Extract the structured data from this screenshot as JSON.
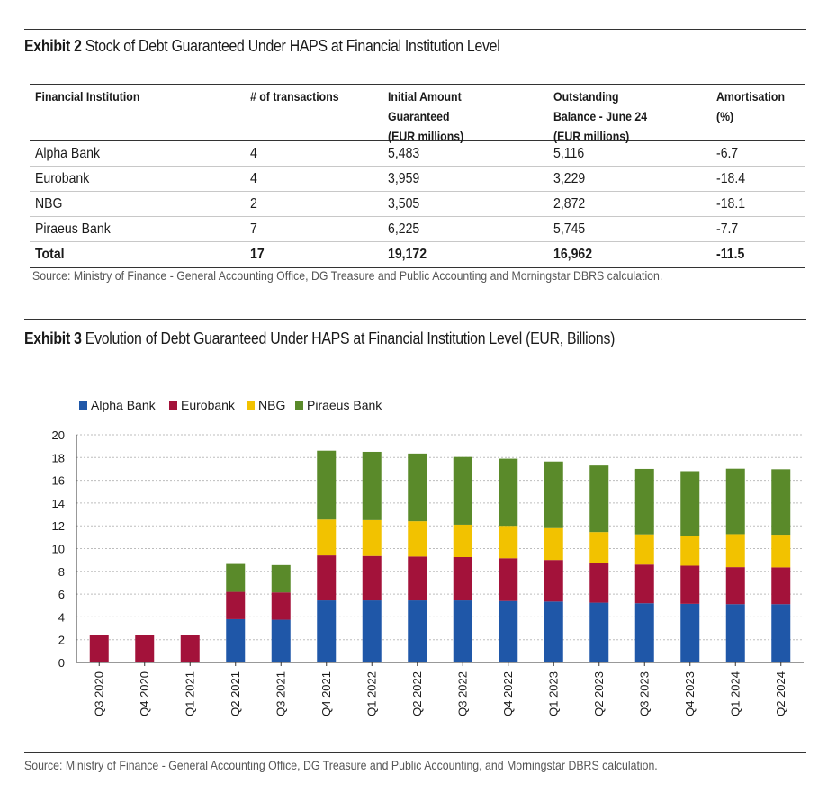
{
  "exhibit2": {
    "label": "Exhibit 2",
    "title": "Stock of Debt Guaranteed Under HAPS at Financial Institution Level",
    "headers": [
      "Financial Institution",
      "# of transactions",
      "Initial Amount\nGuaranteed\n(EUR millions)",
      "Outstanding\nBalance - June 24\n(EUR millions)",
      "Amortisation\n(%)"
    ],
    "rows": [
      [
        "Alpha Bank",
        "4",
        "5,483",
        "5,116",
        "-6.7"
      ],
      [
        "Eurobank",
        "4",
        "3,959",
        "3,229",
        "-18.4"
      ],
      [
        "NBG",
        "2",
        "3,505",
        "2,872",
        "-18.1"
      ],
      [
        "Piraeus Bank",
        "7",
        "6,225",
        "5,745",
        "-7.7"
      ]
    ],
    "total": [
      "Total",
      "17",
      "19,172",
      "16,962",
      "-11.5"
    ],
    "source": "Source: Ministry of Finance - General Accounting Office, DG Treasure and Public Accounting and Morningstar DBRS calculation."
  },
  "exhibit3": {
    "label": "Exhibit 3",
    "title": "Evolution of Debt Guaranteed Under HAPS at Financial Institution Level (EUR, Billions)",
    "source": "Source: Ministry of Finance - General Accounting Office, DG Treasure and Public Accounting, and Morningstar DBRS calculation."
  },
  "chart_data": {
    "type": "bar",
    "stacked": true,
    "title": "Evolution of Debt Guaranteed Under HAPS at Financial Institution Level (EUR, Billions)",
    "xlabel": "",
    "ylabel": "",
    "ylim": [
      0,
      20
    ],
    "yticks": [
      0,
      2,
      4,
      6,
      8,
      10,
      12,
      14,
      16,
      18,
      20
    ],
    "grid": true,
    "legend_position": "top-left",
    "categories": [
      "Q3 2020",
      "Q4 2020",
      "Q1 2021",
      "Q2 2021",
      "Q3 2021",
      "Q4 2021",
      "Q1 2022",
      "Q2 2022",
      "Q3 2022",
      "Q4 2022",
      "Q1 2023",
      "Q2 2023",
      "Q3 2023",
      "Q4 2023",
      "Q1 2024",
      "Q2 2024"
    ],
    "series": [
      {
        "name": "Alpha Bank",
        "color": "#1f57a8",
        "values": [
          0,
          0,
          0,
          3.8,
          3.75,
          5.45,
          5.45,
          5.45,
          5.45,
          5.4,
          5.35,
          5.25,
          5.2,
          5.15,
          5.12,
          5.12
        ]
      },
      {
        "name": "Eurobank",
        "color": "#a3123a",
        "values": [
          2.45,
          2.45,
          2.45,
          2.4,
          2.4,
          3.95,
          3.9,
          3.85,
          3.8,
          3.75,
          3.65,
          3.5,
          3.4,
          3.35,
          3.25,
          3.23
        ]
      },
      {
        "name": "NBG",
        "color": "#f2c200",
        "values": [
          0,
          0,
          0,
          0,
          0,
          3.15,
          3.15,
          3.1,
          2.85,
          2.85,
          2.8,
          2.7,
          2.65,
          2.6,
          2.9,
          2.87
        ]
      },
      {
        "name": "Piraeus Bank",
        "color": "#5a8a2a",
        "values": [
          0,
          0,
          0,
          2.45,
          2.4,
          6.05,
          6.0,
          5.95,
          5.95,
          5.9,
          5.85,
          5.85,
          5.75,
          5.7,
          5.75,
          5.75
        ]
      }
    ]
  }
}
